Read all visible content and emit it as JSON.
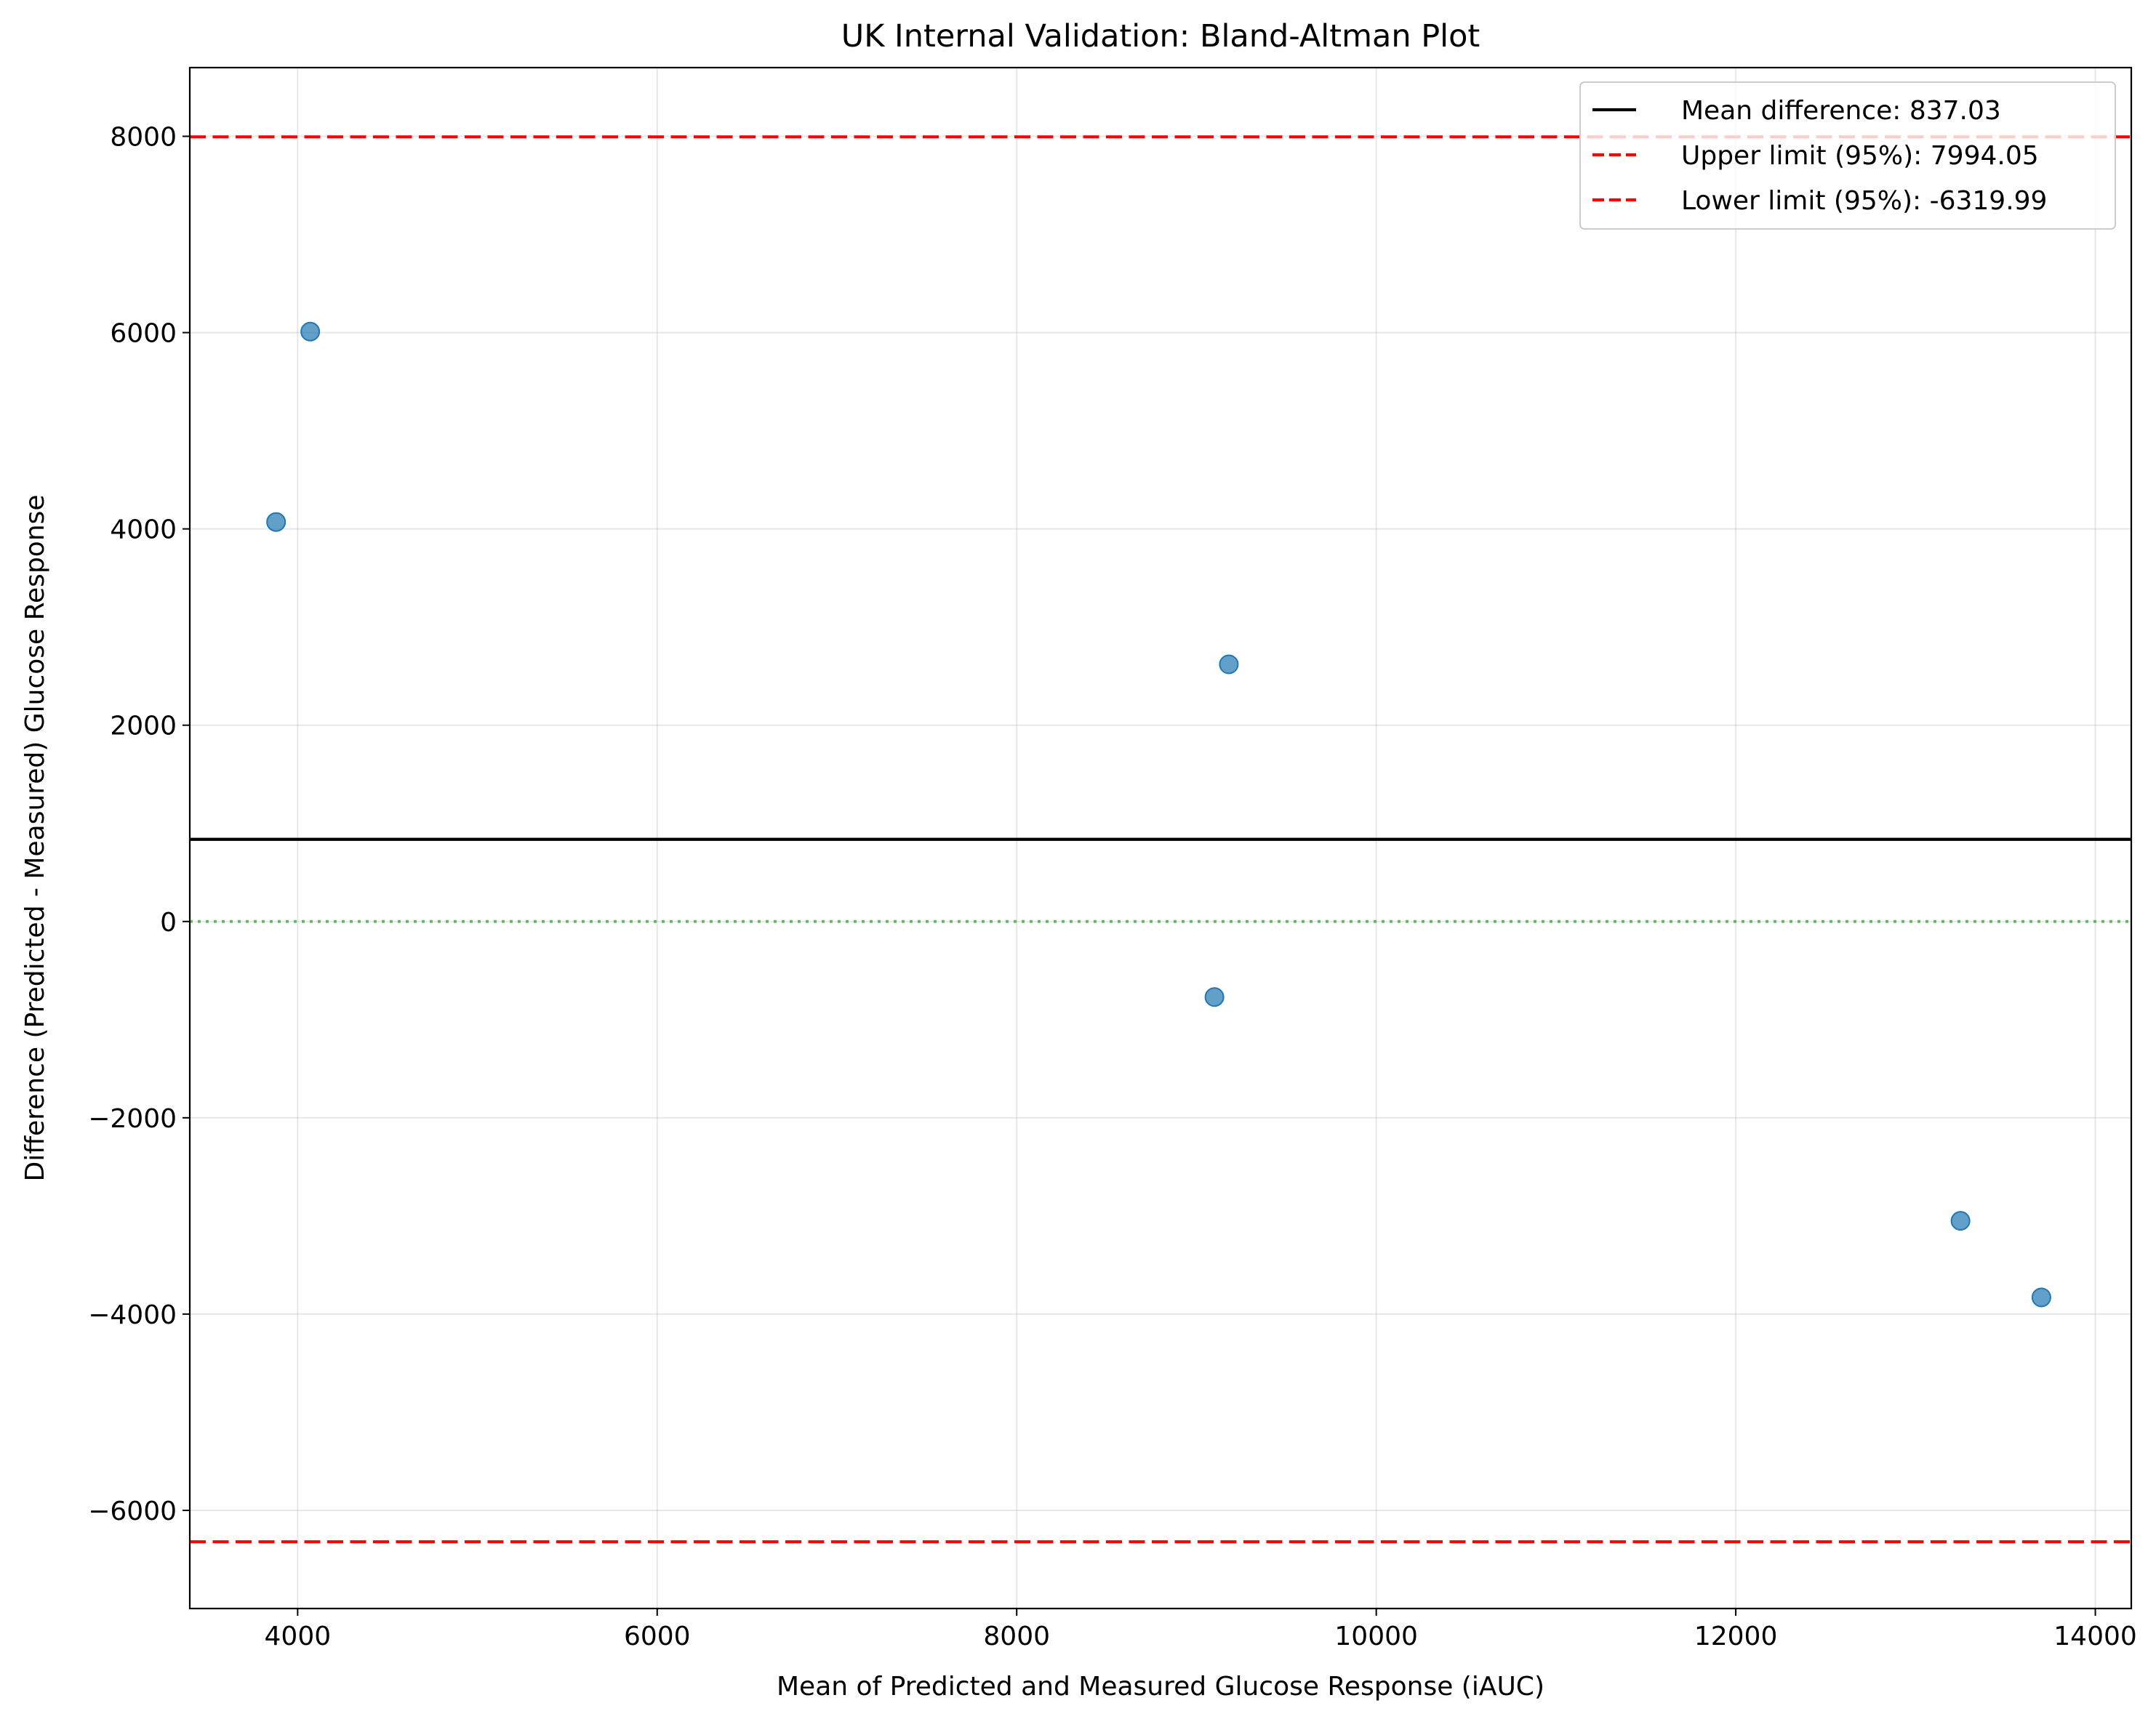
{
  "chart_data": {
    "type": "scatter",
    "title": "UK Internal Validation: Bland-Altman Plot",
    "xlabel": "Mean of Predicted and Measured Glucose Response (iAUC)",
    "ylabel": "Difference (Predicted - Measured) Glucose Response",
    "xlim": [
      3400,
      14200
    ],
    "ylim": [
      -7000,
      8700
    ],
    "x_ticks": [
      4000,
      6000,
      8000,
      10000,
      12000,
      14000
    ],
    "x_tick_labels": [
      "4000",
      "6000",
      "8000",
      "10000",
      "12000",
      "14000"
    ],
    "y_ticks": [
      -6000,
      -4000,
      -2000,
      0,
      2000,
      4000,
      6000,
      8000
    ],
    "y_tick_labels": [
      "−6000",
      "−4000",
      "−2000",
      "0",
      "2000",
      "4000",
      "6000",
      "8000"
    ],
    "grid": true,
    "legend_position": "top-right",
    "points": [
      {
        "x": 3880,
        "y": 4070
      },
      {
        "x": 4070,
        "y": 6010
      },
      {
        "x": 9180,
        "y": 2620
      },
      {
        "x": 9100,
        "y": -770
      },
      {
        "x": 13250,
        "y": -3050
      },
      {
        "x": 13700,
        "y": -3830
      }
    ],
    "reference_lines": [
      {
        "label": "Mean difference: 837.03",
        "y": 837.03,
        "color": "#000000",
        "style": "solid"
      },
      {
        "label": "Upper limit (95%): 7994.05",
        "y": 7994.05,
        "color": "#ff0000",
        "style": "dashed"
      },
      {
        "label": "Lower limit (95%): -6319.99",
        "y": -6319.99,
        "color": "#ff0000",
        "style": "dashed"
      }
    ],
    "zero_line": {
      "y": 0,
      "color": "#2ca02c",
      "style": "dotted"
    },
    "point_color": "#1f77b4"
  }
}
